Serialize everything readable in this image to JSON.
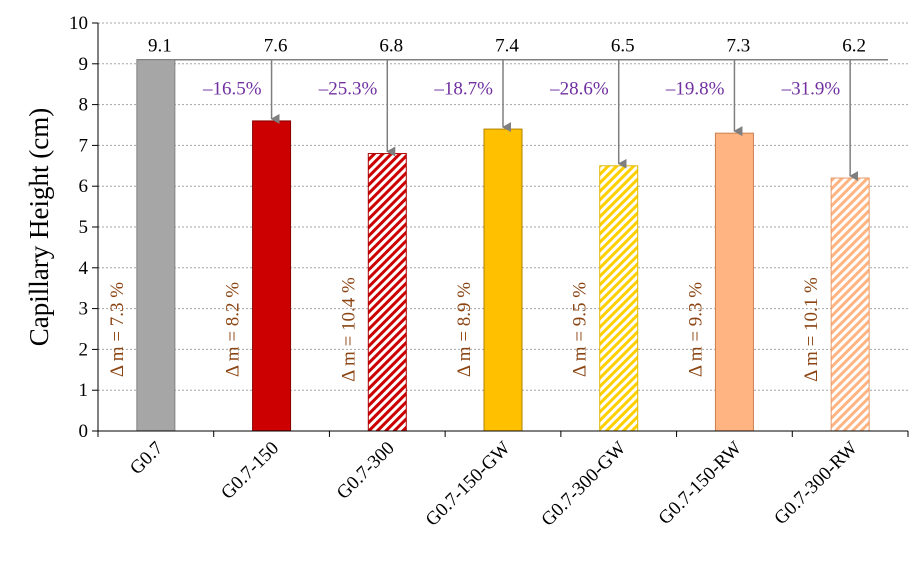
{
  "chart_data": {
    "type": "bar",
    "title": "",
    "xlabel": "",
    "ylabel": "Capillary Height (cm)",
    "ylim": [
      0,
      10
    ],
    "yticks": [
      "0",
      "1",
      "2",
      "3",
      "4",
      "5",
      "6",
      "7",
      "8",
      "9",
      "10"
    ],
    "grid": true,
    "categories": [
      "G0.7",
      "G0.7-150",
      "G0.7-300",
      "G0.7-150-GW",
      "G0.7-300-GW",
      "G0.7-150-RW",
      "G0.7-300-RW"
    ],
    "values": [
      9.1,
      7.6,
      6.8,
      7.4,
      6.5,
      7.3,
      6.2
    ],
    "value_labels": [
      "9.1",
      "7.6",
      "6.8",
      "7.4",
      "6.5",
      "7.3",
      "6.2"
    ],
    "percent_change": [
      "",
      "–16.5%",
      "–25.3%",
      "–18.7%",
      "–28.6%",
      "–19.8%",
      "–31.9%"
    ],
    "mass_change_labels": [
      "Δ m = 7.3 %",
      "Δ m = 8.2 %",
      "Δ m = 10.4 %",
      "Δ m = 8.9 %",
      "Δ m = 9.5 %",
      "Δ m = 9.3 %",
      "Δ m = 10.1 %"
    ],
    "bar_colors": [
      "#a6a6a6",
      "#cc0000",
      "#cc0000",
      "#ffc000",
      "#ffe020",
      "#ffb482",
      "#ffb482"
    ],
    "bar_hatched": [
      false,
      false,
      true,
      false,
      true,
      false,
      true
    ],
    "reference_line_value": 9.1,
    "colors": {
      "percent_text": "#7030a0",
      "mass_text": "#8b4513",
      "arrow": "#7f7f7f",
      "grid": "#a6a6a6"
    }
  }
}
